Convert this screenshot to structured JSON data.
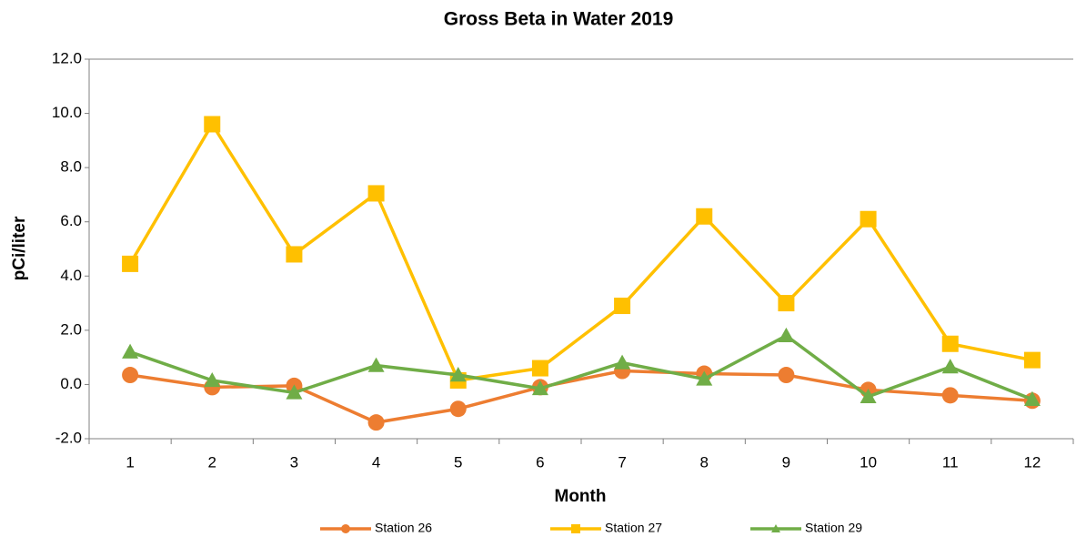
{
  "chart_data": {
    "type": "line",
    "title": "Gross Beta in Water 2019",
    "x_label": "Month",
    "y_label": "pCi/liter",
    "categories": [
      "1",
      "2",
      "3",
      "4",
      "5",
      "6",
      "7",
      "8",
      "9",
      "10",
      "11",
      "12"
    ],
    "series": [
      {
        "name": "Station 26",
        "color": "#ED7D31",
        "marker": "circle",
        "values": [
          0.35,
          -0.1,
          -0.05,
          -1.4,
          -0.9,
          -0.1,
          0.5,
          0.4,
          0.35,
          -0.2,
          -0.4,
          -0.6
        ]
      },
      {
        "name": "Station 27",
        "color": "#FFC000",
        "marker": "square",
        "values": [
          4.45,
          9.6,
          4.8,
          7.05,
          0.15,
          0.6,
          2.9,
          6.2,
          3.0,
          6.1,
          1.5,
          0.9
        ]
      },
      {
        "name": "Station 29",
        "color": "#70AD47",
        "marker": "triangle",
        "values": [
          1.2,
          0.15,
          -0.3,
          0.7,
          0.35,
          -0.15,
          0.8,
          0.2,
          1.8,
          -0.45,
          0.65,
          -0.55
        ]
      }
    ],
    "ylim": [
      -2,
      12
    ],
    "yticks": [
      {
        "value": -2,
        "label": "-2.0"
      },
      {
        "value": 0,
        "label": "0.0"
      },
      {
        "value": 2,
        "label": "2.0"
      },
      {
        "value": 4,
        "label": "4.0"
      },
      {
        "value": 6,
        "label": "6.0"
      },
      {
        "value": 8,
        "label": "8.0"
      },
      {
        "value": 10,
        "label": "10.0"
      },
      {
        "value": 12,
        "label": "12.0"
      }
    ],
    "grid": false,
    "legend": "bottom"
  }
}
